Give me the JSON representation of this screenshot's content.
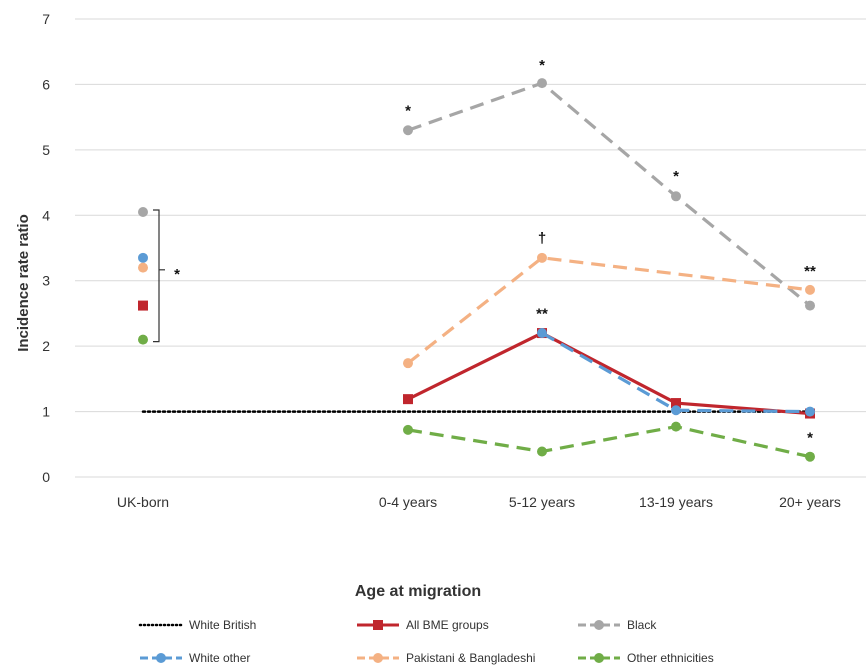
{
  "chart_data": {
    "type": "line",
    "xlabel": "Age at migration",
    "ylabel": "Incidence rate ratio",
    "categories": [
      "UK-born",
      "0-4 years",
      "5-12 years",
      "13-19 years",
      "20+ years"
    ],
    "ylim": [
      0,
      7
    ],
    "yticks": [
      0,
      1,
      2,
      3,
      4,
      5,
      6,
      7
    ],
    "grid": true,
    "legend_position": "bottom",
    "series": [
      {
        "name": "White British",
        "color": "#000000",
        "style": "dotted",
        "marker": "none",
        "values": [
          1,
          1,
          1,
          1,
          1
        ]
      },
      {
        "name": "All BME groups",
        "color": "#c0262d",
        "style": "solid",
        "marker": "square",
        "values": [
          2.62,
          1.19,
          2.2,
          1.13,
          0.97
        ]
      },
      {
        "name": "Black",
        "color": "#a6a6a6",
        "style": "dashed",
        "marker": "circle",
        "values": [
          4.05,
          5.3,
          6.02,
          4.29,
          2.62
        ]
      },
      {
        "name": "White other",
        "color": "#5b9bd5",
        "style": "dashed",
        "marker": "circle",
        "values": [
          3.35,
          null,
          2.2,
          1.02,
          1.0
        ]
      },
      {
        "name": "Pakistani & Bangladeshi",
        "color": "#f4b183",
        "style": "dashed",
        "marker": "circle",
        "values": [
          3.2,
          1.74,
          3.35,
          null,
          2.86
        ]
      },
      {
        "name": "Other ethnicities",
        "color": "#70ad47",
        "style": "dashed",
        "marker": "circle",
        "values": [
          2.1,
          0.72,
          0.39,
          0.77,
          0.31
        ]
      }
    ],
    "annotations": [
      {
        "text": "*",
        "category": "UK-born",
        "y": 3.1,
        "kind": "bracket",
        "range": [
          2.1,
          4.05
        ]
      },
      {
        "text": "*",
        "category": "0-4 years",
        "y": 5.6
      },
      {
        "text": "*",
        "category": "5-12 years",
        "y": 6.3
      },
      {
        "text": "†",
        "category": "5-12 years",
        "y": 3.65
      },
      {
        "text": "**",
        "category": "5-12 years",
        "y": 2.5
      },
      {
        "text": "*",
        "category": "13-19 years",
        "y": 4.6
      },
      {
        "text": "**",
        "category": "20+ years",
        "y": 3.15
      },
      {
        "text": "*",
        "category": "20+ years",
        "y": 0.6
      }
    ]
  }
}
